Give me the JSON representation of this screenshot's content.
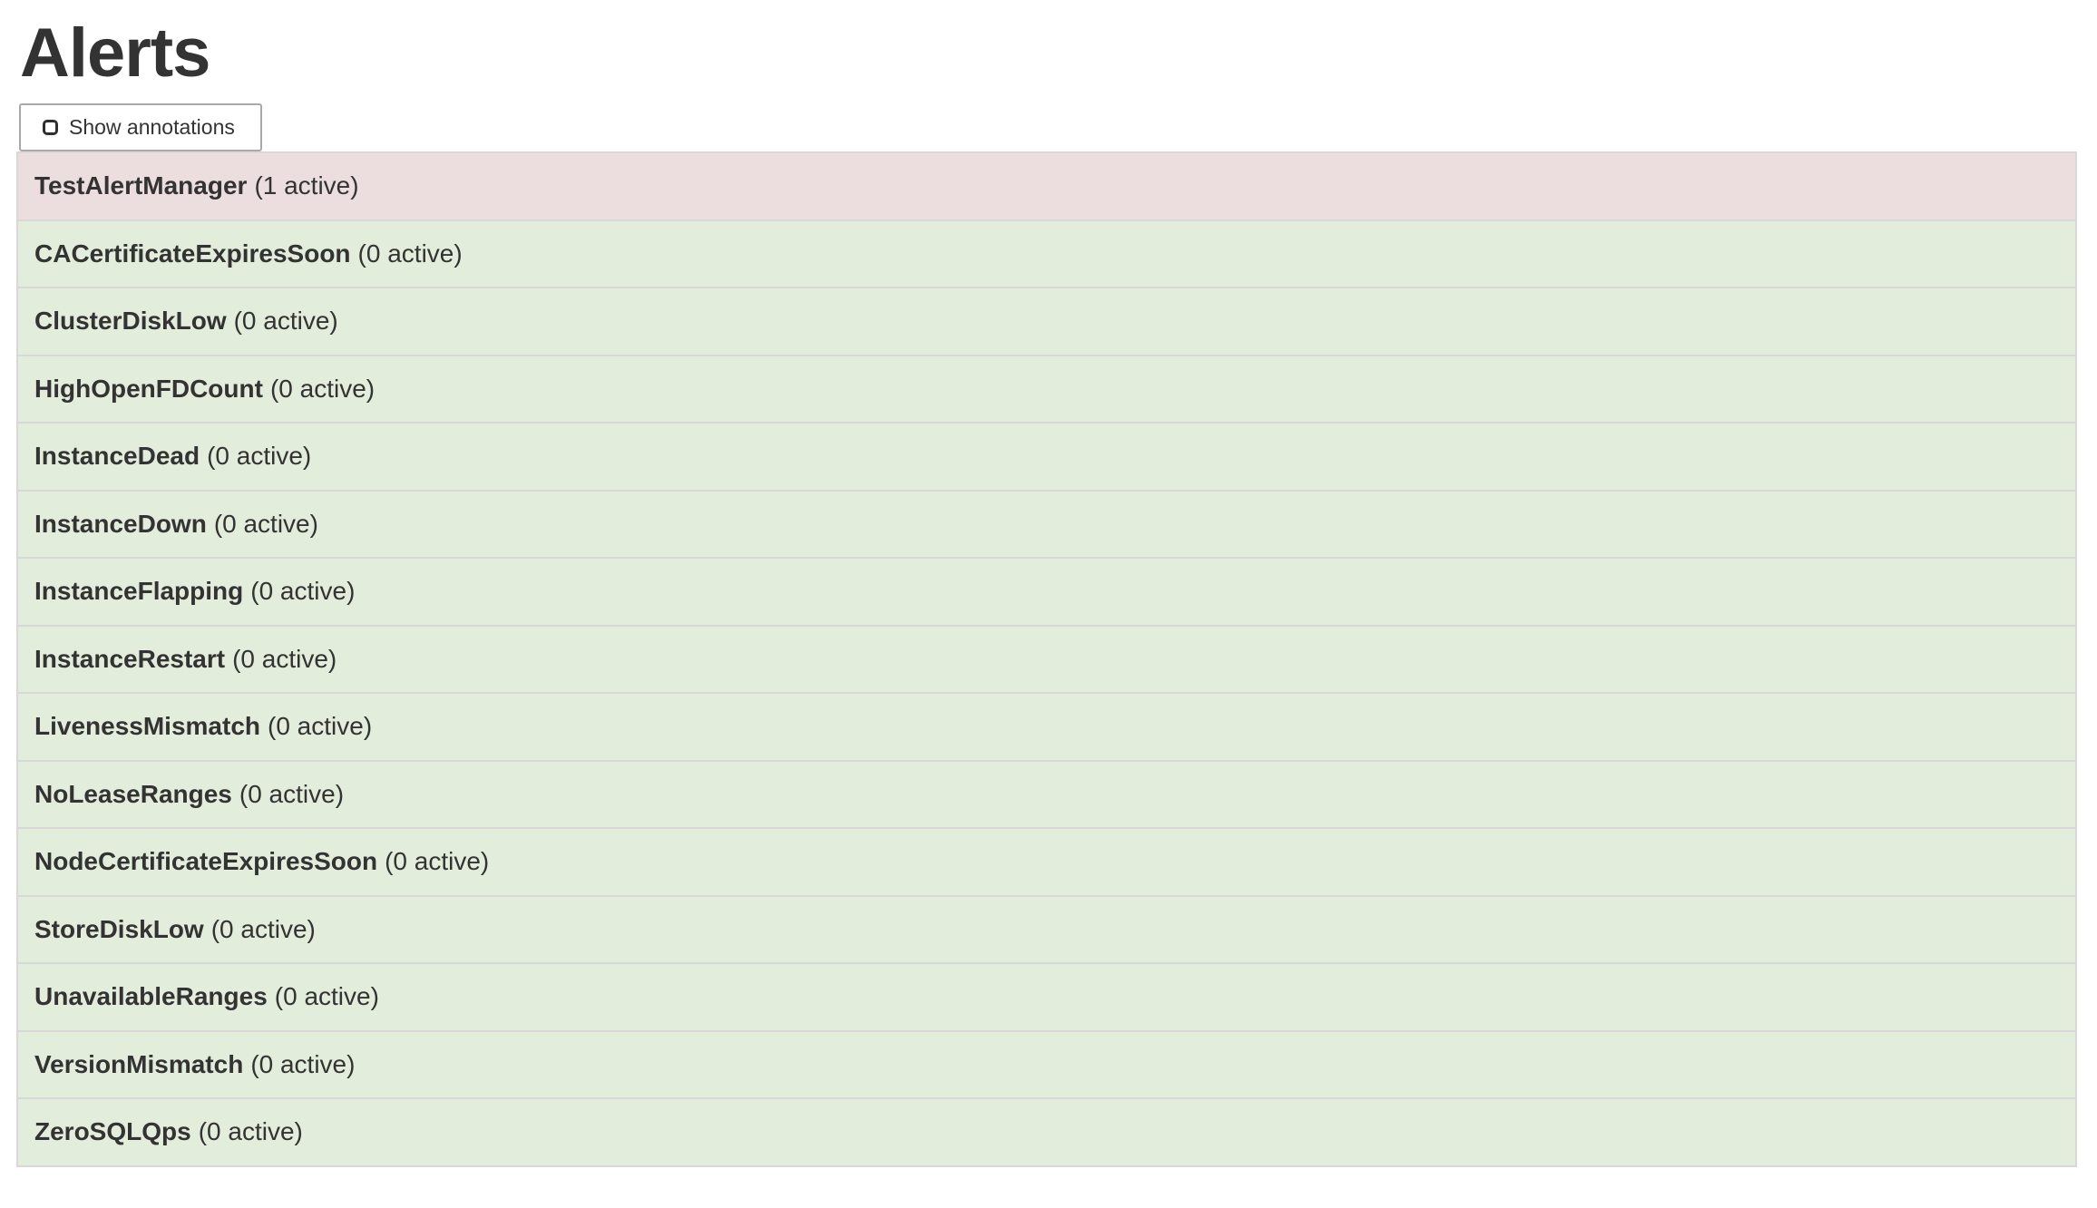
{
  "page_title": "Alerts",
  "controls": {
    "show_annotations": {
      "label": "Show annotations",
      "checked": false
    }
  },
  "alerts": [
    {
      "name": "TestAlertManager",
      "active_count": 1,
      "count_label": "(1 active)",
      "status": "firing"
    },
    {
      "name": "CACertificateExpiresSoon",
      "active_count": 0,
      "count_label": "(0 active)",
      "status": "inactive"
    },
    {
      "name": "ClusterDiskLow",
      "active_count": 0,
      "count_label": "(0 active)",
      "status": "inactive"
    },
    {
      "name": "HighOpenFDCount",
      "active_count": 0,
      "count_label": "(0 active)",
      "status": "inactive"
    },
    {
      "name": "InstanceDead",
      "active_count": 0,
      "count_label": "(0 active)",
      "status": "inactive"
    },
    {
      "name": "InstanceDown",
      "active_count": 0,
      "count_label": "(0 active)",
      "status": "inactive"
    },
    {
      "name": "InstanceFlapping",
      "active_count": 0,
      "count_label": "(0 active)",
      "status": "inactive"
    },
    {
      "name": "InstanceRestart",
      "active_count": 0,
      "count_label": "(0 active)",
      "status": "inactive"
    },
    {
      "name": "LivenessMismatch",
      "active_count": 0,
      "count_label": "(0 active)",
      "status": "inactive"
    },
    {
      "name": "NoLeaseRanges",
      "active_count": 0,
      "count_label": "(0 active)",
      "status": "inactive"
    },
    {
      "name": "NodeCertificateExpiresSoon",
      "active_count": 0,
      "count_label": "(0 active)",
      "status": "inactive"
    },
    {
      "name": "StoreDiskLow",
      "active_count": 0,
      "count_label": "(0 active)",
      "status": "inactive"
    },
    {
      "name": "UnavailableRanges",
      "active_count": 0,
      "count_label": "(0 active)",
      "status": "inactive"
    },
    {
      "name": "VersionMismatch",
      "active_count": 0,
      "count_label": "(0 active)",
      "status": "inactive"
    },
    {
      "name": "ZeroSQLQps",
      "active_count": 0,
      "count_label": "(0 active)",
      "status": "inactive"
    }
  ],
  "colors": {
    "firing_row_bg": "#ecdede",
    "inactive_row_bg": "#e2eddb",
    "row_border": "#d8d8d8",
    "text": "#333333",
    "button_border": "#a9a9a9"
  }
}
